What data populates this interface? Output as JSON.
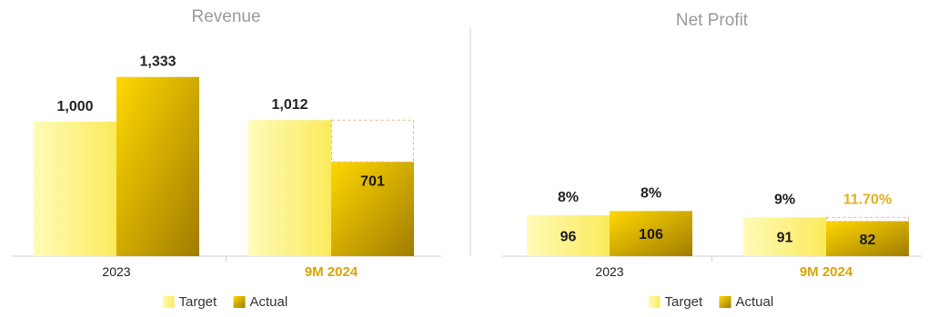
{
  "colors": {
    "target_light": "#fffbb8",
    "target_dark": "#fbea5c",
    "actual_light": "#ffd800",
    "actual_dark": "#a07c00",
    "highlight_tick": "#d9a400",
    "highlight_label": "#e0b020",
    "gap_dash": "#f0b080"
  },
  "chart_data": [
    {
      "type": "bar",
      "title": "Revenue",
      "categories": [
        "2023",
        "9M 2024"
      ],
      "highlight_category": "9M 2024",
      "series": [
        {
          "name": "Target",
          "values": [
            1000,
            1012
          ],
          "labels": [
            "1,000",
            "1,012"
          ]
        },
        {
          "name": "Actual",
          "values": [
            1333,
            701
          ],
          "labels": [
            "1,333",
            "701"
          ]
        }
      ],
      "ylim": [
        0,
        1500
      ],
      "grid": false,
      "legend_position": "bottom"
    },
    {
      "type": "bar",
      "title": "Net Profit",
      "categories": [
        "2023",
        "9M 2024"
      ],
      "highlight_category": "9M 2024",
      "series": [
        {
          "name": "Target",
          "values": [
            96,
            91
          ],
          "labels": [
            "96",
            "91"
          ],
          "margins": [
            "8%",
            "9%"
          ]
        },
        {
          "name": "Actual",
          "values": [
            106,
            82
          ],
          "labels": [
            "106",
            "82"
          ],
          "margins": [
            "8%",
            "11.70%"
          ]
        }
      ],
      "ylim": [
        0,
        400
      ],
      "grid": false,
      "legend_position": "bottom"
    }
  ]
}
